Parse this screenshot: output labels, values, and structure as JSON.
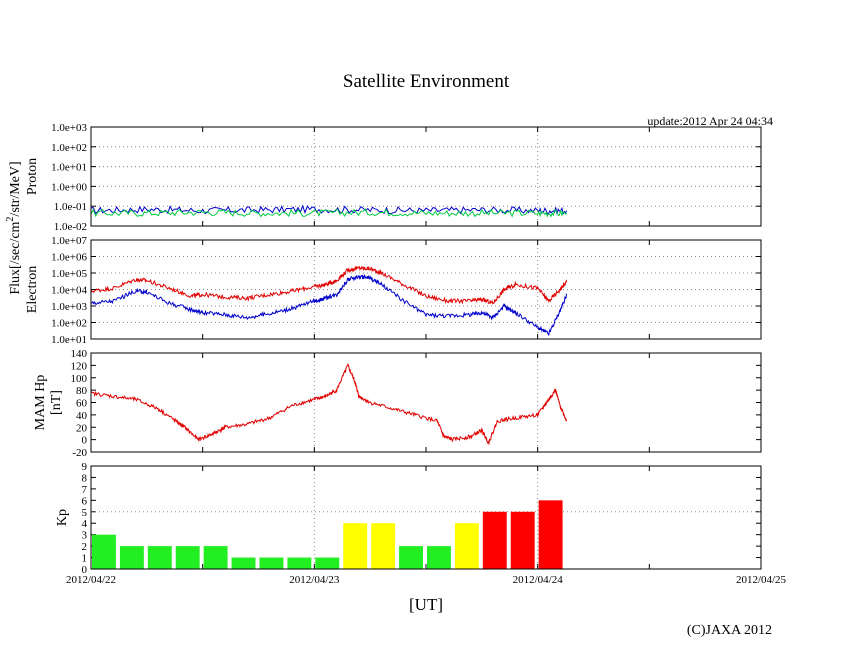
{
  "title": "Satellite Environment",
  "update": "update:2012 Apr 24 04:34",
  "xlabel": "[UT]",
  "copyright": "(C)JAXA 2012",
  "flux_label": {
    "prefix": "Flux[/sec/cm",
    "sup": "2",
    "suffix": "/str/MeV]"
  },
  "colors": {
    "red": "#e00000",
    "blue": "#0000cc",
    "green": "#00cc44",
    "kp_green": "#22ee22",
    "kp_yellow": "#ffff00",
    "kp_red": "#ff0000",
    "grid": "#888888"
  },
  "chart_data": [
    {
      "type": "line",
      "name": "proton",
      "ylabel": "Proton",
      "yscale": "log",
      "ylim": [
        0.01,
        1000
      ],
      "ytick_labels": [
        "1.0e-02",
        "1.0e-01",
        "1.0e+00",
        "1.0e+01",
        "1.0e+02",
        "1.0e+03"
      ],
      "x": [
        0,
        0.25,
        0.5,
        0.75,
        1,
        1.25,
        1.5,
        1.75,
        2,
        2.13
      ],
      "series": [
        {
          "name": "proton-blue",
          "color": "blue",
          "values": [
            0.06,
            0.07,
            0.06,
            0.065,
            0.07,
            0.065,
            0.06,
            0.065,
            0.06,
            0.06
          ]
        },
        {
          "name": "proton-green",
          "color": "green",
          "values": [
            0.045,
            0.045,
            0.05,
            0.045,
            0.045,
            0.05,
            0.045,
            0.045,
            0.045,
            0.045
          ]
        }
      ]
    },
    {
      "type": "line",
      "name": "electron",
      "ylabel": "Electron",
      "yscale": "log",
      "ylim": [
        10,
        10000000
      ],
      "ytick_labels": [
        "1.0e+01",
        "1.0e+02",
        "1.0e+03",
        "1.0e+04",
        "1.0e+05",
        "1.0e+06",
        "1.0e+07"
      ],
      "x": [
        0,
        0.1,
        0.2,
        0.25,
        0.35,
        0.45,
        0.5,
        0.6,
        0.7,
        0.8,
        0.9,
        1.0,
        1.05,
        1.1,
        1.15,
        1.2,
        1.25,
        1.3,
        1.4,
        1.5,
        1.6,
        1.7,
        1.75,
        1.8,
        1.85,
        1.9,
        2.0,
        2.05,
        2.1,
        2.13
      ],
      "series": [
        {
          "name": "electron-red",
          "color": "red",
          "values": [
            8000,
            12000,
            40000,
            35000,
            12000,
            4000,
            5000,
            3500,
            3000,
            5000,
            8000,
            15000,
            20000,
            35000,
            150000,
            200000,
            180000,
            100000,
            20000,
            4000,
            2000,
            2000,
            2500,
            1500,
            10000,
            20000,
            12000,
            2000,
            10000,
            30000
          ]
        },
        {
          "name": "electron-blue",
          "color": "blue",
          "values": [
            1500,
            2000,
            8000,
            7000,
            1500,
            600,
            400,
            300,
            200,
            350,
            700,
            2000,
            3000,
            5000,
            40000,
            60000,
            50000,
            20000,
            2000,
            300,
            250,
            300,
            400,
            200,
            1000,
            400,
            50,
            20,
            500,
            5000
          ]
        }
      ]
    },
    {
      "type": "line",
      "name": "mam-hp",
      "ylabel": "MAM Hp",
      "ylabel2": "[nT]",
      "ylim": [
        -20,
        140
      ],
      "yticks": [
        -20,
        0,
        20,
        40,
        60,
        80,
        100,
        120,
        140
      ],
      "x": [
        0,
        0.1,
        0.2,
        0.3,
        0.38,
        0.42,
        0.48,
        0.55,
        0.6,
        0.7,
        0.8,
        0.9,
        1.0,
        1.05,
        1.1,
        1.15,
        1.18,
        1.2,
        1.25,
        1.35,
        1.45,
        1.55,
        1.58,
        1.62,
        1.7,
        1.75,
        1.78,
        1.82,
        1.9,
        2.0,
        2.05,
        2.08,
        2.1,
        2.13
      ],
      "series": [
        {
          "name": "mam-hp-red",
          "color": "red",
          "values": [
            75,
            70,
            65,
            50,
            30,
            20,
            0,
            10,
            20,
            25,
            35,
            55,
            65,
            70,
            80,
            120,
            95,
            70,
            60,
            50,
            40,
            30,
            5,
            0,
            5,
            15,
            -5,
            30,
            35,
            40,
            65,
            80,
            55,
            30
          ]
        }
      ]
    },
    {
      "type": "bar",
      "name": "kp",
      "ylabel": "Kp",
      "ylim": [
        0,
        9
      ],
      "yticks": [
        0,
        1,
        2,
        3,
        4,
        5,
        6,
        7,
        8,
        9
      ],
      "values": [
        3,
        2,
        2,
        2,
        2,
        1,
        1,
        1,
        1,
        4,
        4,
        2,
        2,
        4,
        5,
        5,
        6
      ],
      "level_colors": [
        "kp_green",
        "kp_green",
        "kp_green",
        "kp_green",
        "kp_green",
        "kp_green",
        "kp_green",
        "kp_green",
        "kp_green",
        "kp_yellow",
        "kp_yellow",
        "kp_green",
        "kp_green",
        "kp_yellow",
        "kp_red",
        "kp_red",
        "kp_red"
      ]
    }
  ],
  "x_axis": {
    "range_days": [
      0,
      3
    ],
    "tick_labels": [
      "2012/04/22",
      "2012/04/23",
      "2012/04/24",
      "2012/04/25"
    ]
  }
}
